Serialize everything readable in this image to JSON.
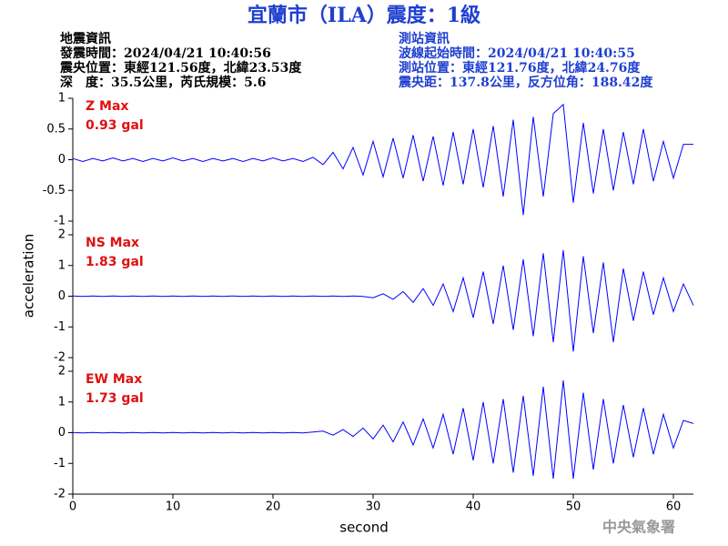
{
  "header": {
    "title": "宜蘭市（ILA）震度：1級",
    "event_info": [
      "地震資訊",
      "發震時間：2024/04/21 10:40:56",
      "震央位置：東經121.56度，北緯23.53度",
      "深　度：35.5公里，芮氏規模：5.6"
    ],
    "station_info": [
      "測站資訊",
      "波線起始時間：2024/04/21 10:40:55",
      "測站位置：東經121.76度，北緯24.76度",
      "震央距：137.8公里，反方位角：188.42度"
    ]
  },
  "y_label": "acceleration",
  "x_label": "second",
  "credit": "中央氣象署",
  "chart_data": [
    {
      "type": "line",
      "annotations": [
        "Z Max",
        "0.93 gal"
      ],
      "xlim": [
        0,
        62
      ],
      "ylim": [
        -1,
        1
      ],
      "yticks": [
        -1,
        -0.5,
        0,
        0.5,
        1
      ],
      "x": [
        0,
        1,
        2,
        3,
        4,
        5,
        6,
        7,
        8,
        9,
        10,
        11,
        12,
        13,
        14,
        15,
        16,
        17,
        18,
        19,
        20,
        21,
        22,
        23,
        24,
        25,
        26,
        27,
        28,
        29,
        30,
        31,
        32,
        33,
        34,
        35,
        36,
        37,
        38,
        39,
        40,
        41,
        42,
        43,
        44,
        45,
        46,
        47,
        48,
        49,
        50,
        51,
        52,
        53,
        54,
        55,
        56,
        57,
        58,
        59,
        60,
        61,
        62
      ],
      "series": [
        {
          "color": "#0000ff",
          "values": [
            0.02,
            -0.03,
            0.02,
            -0.02,
            0.03,
            -0.02,
            0.02,
            -0.03,
            0.02,
            -0.02,
            0.03,
            -0.02,
            0.02,
            -0.03,
            0.02,
            -0.02,
            0.02,
            -0.03,
            0.02,
            -0.02,
            0.03,
            -0.02,
            0.02,
            -0.03,
            0.04,
            -0.08,
            0.12,
            -0.15,
            0.2,
            -0.25,
            0.3,
            -0.28,
            0.35,
            -0.3,
            0.4,
            -0.35,
            0.38,
            -0.42,
            0.45,
            -0.4,
            0.5,
            -0.45,
            0.55,
            -0.6,
            0.65,
            -0.9,
            0.7,
            -0.6,
            0.75,
            0.9,
            -0.7,
            0.6,
            -0.55,
            0.5,
            -0.5,
            0.45,
            -0.4,
            0.5,
            -0.35,
            0.3,
            -0.3,
            0.25,
            0.25
          ]
        }
      ]
    },
    {
      "type": "line",
      "annotations": [
        "NS Max",
        "1.83 gal"
      ],
      "xlim": [
        0,
        62
      ],
      "ylim": [
        -2,
        2
      ],
      "yticks": [
        -2,
        -1,
        0,
        1,
        2
      ],
      "x": [
        0,
        1,
        2,
        3,
        4,
        5,
        6,
        7,
        8,
        9,
        10,
        11,
        12,
        13,
        14,
        15,
        16,
        17,
        18,
        19,
        20,
        21,
        22,
        23,
        24,
        25,
        26,
        27,
        28,
        29,
        30,
        31,
        32,
        33,
        34,
        35,
        36,
        37,
        38,
        39,
        40,
        41,
        42,
        43,
        44,
        45,
        46,
        47,
        48,
        49,
        50,
        51,
        52,
        53,
        54,
        55,
        56,
        57,
        58,
        59,
        60,
        61,
        62
      ],
      "series": [
        {
          "color": "#0000ff",
          "values": [
            0.01,
            -0.01,
            0.01,
            -0.01,
            0.01,
            -0.01,
            0.01,
            -0.01,
            0.01,
            -0.01,
            0.01,
            -0.01,
            0.01,
            -0.01,
            0.01,
            -0.01,
            0.01,
            -0.01,
            0.01,
            -0.01,
            0.01,
            -0.01,
            0.01,
            -0.01,
            0.01,
            -0.01,
            0.01,
            -0.01,
            0.01,
            -0.01,
            -0.05,
            0.08,
            -0.1,
            0.15,
            -0.2,
            0.25,
            -0.3,
            0.4,
            -0.5,
            0.6,
            -0.7,
            0.8,
            -0.9,
            1.0,
            -1.1,
            1.2,
            -1.3,
            1.4,
            -1.5,
            1.5,
            -1.8,
            1.3,
            -1.2,
            1.1,
            -1.5,
            0.9,
            -0.8,
            0.8,
            -0.6,
            0.6,
            -0.5,
            0.4,
            -0.3
          ]
        }
      ]
    },
    {
      "type": "line",
      "annotations": [
        "EW Max",
        "1.73 gal"
      ],
      "xlim": [
        0,
        62
      ],
      "xticks": [
        0,
        10,
        20,
        30,
        40,
        50,
        60
      ],
      "ylim": [
        -2,
        2
      ],
      "yticks": [
        -2,
        -1,
        0,
        1,
        2
      ],
      "x": [
        0,
        1,
        2,
        3,
        4,
        5,
        6,
        7,
        8,
        9,
        10,
        11,
        12,
        13,
        14,
        15,
        16,
        17,
        18,
        19,
        20,
        21,
        22,
        23,
        24,
        25,
        26,
        27,
        28,
        29,
        30,
        31,
        32,
        33,
        34,
        35,
        36,
        37,
        38,
        39,
        40,
        41,
        42,
        43,
        44,
        45,
        46,
        47,
        48,
        49,
        50,
        51,
        52,
        53,
        54,
        55,
        56,
        57,
        58,
        59,
        60,
        61,
        62
      ],
      "series": [
        {
          "color": "#0000ff",
          "values": [
            0.01,
            -0.01,
            0.01,
            -0.01,
            0.01,
            -0.01,
            0.01,
            -0.01,
            0.01,
            -0.01,
            0.01,
            -0.01,
            0.01,
            -0.01,
            0.01,
            -0.01,
            0.01,
            -0.01,
            0.01,
            -0.01,
            0.01,
            -0.01,
            0.01,
            -0.01,
            0.02,
            0.05,
            -0.08,
            0.1,
            -0.12,
            0.15,
            -0.2,
            0.25,
            -0.3,
            0.35,
            -0.4,
            0.45,
            -0.5,
            0.6,
            -0.7,
            0.8,
            -0.9,
            1.0,
            -1.0,
            1.1,
            -1.3,
            1.2,
            -1.4,
            1.5,
            -1.5,
            1.7,
            -1.5,
            1.3,
            -1.2,
            1.1,
            -1.0,
            0.9,
            -0.8,
            0.8,
            -0.7,
            0.6,
            -0.5,
            0.4,
            0.3
          ]
        }
      ]
    }
  ]
}
